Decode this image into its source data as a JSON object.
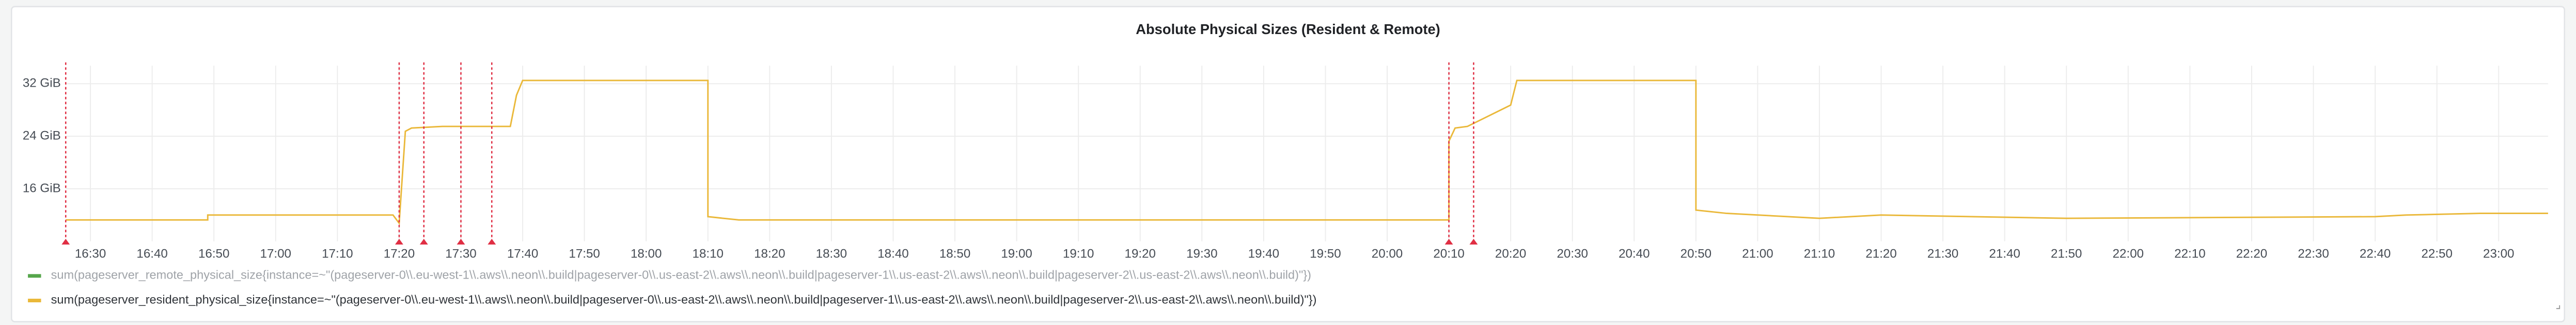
{
  "chart_data": {
    "type": "line",
    "title": "Absolute Physical Sizes (Resident & Remote)",
    "xlim": [
      "16:26",
      "23:08"
    ],
    "xticks": [
      "16:30",
      "16:40",
      "16:50",
      "17:00",
      "17:10",
      "17:20",
      "17:30",
      "17:40",
      "17:50",
      "18:00",
      "18:10",
      "18:20",
      "18:30",
      "18:40",
      "18:50",
      "19:00",
      "19:10",
      "19:20",
      "19:30",
      "19:40",
      "19:50",
      "20:00",
      "20:10",
      "20:20",
      "20:30",
      "20:40",
      "20:50",
      "21:00",
      "21:10",
      "21:20",
      "21:30",
      "21:40",
      "21:50",
      "22:00",
      "22:10",
      "22:20",
      "22:30",
      "22:40",
      "22:50",
      "23:00"
    ],
    "ylim": [
      8,
      34.75
    ],
    "yticks": [
      {
        "value": 16,
        "label": "16 GiB"
      },
      {
        "value": 24,
        "label": "24 GiB"
      },
      {
        "value": 32,
        "label": "32 GiB"
      }
    ],
    "grid": true,
    "annotations": [
      "16:26",
      "17:20",
      "17:24",
      "17:30",
      "17:35",
      "20:10",
      "20:14"
    ],
    "annotation_color": "#e02f44",
    "x": [
      "16:26",
      "16:49",
      "16:49",
      "17:19",
      "17:20",
      "17:21",
      "17:22",
      "17:27",
      "17:38",
      "17:39",
      "17:40",
      "18:10",
      "18:10",
      "18:15",
      "20:10",
      "20:10",
      "20:11",
      "20:13",
      "20:20",
      "20:21",
      "20:50",
      "20:50",
      "20:55",
      "21:10",
      "21:20",
      "21:50",
      "22:40",
      "22:45",
      "22:57",
      "23:08"
    ],
    "series": [
      {
        "name": "sum(pageserver_remote_physical_size{instance=~\"(pageserver-0\\\\.eu-west-1\\\\.aws\\\\.neon\\\\.build|pageserver-0\\\\.us-east-2\\\\.aws\\\\.neon\\\\.build|pageserver-1\\\\.us-east-2\\\\.aws\\\\.neon\\\\.build|pageserver-2\\\\.us-east-2\\\\.aws\\\\.neon\\\\.build)\"})",
        "color": "#56a64b",
        "values": [
          null,
          null,
          null,
          null,
          null,
          null,
          null,
          null,
          null,
          null,
          null,
          null,
          null,
          null,
          null,
          null,
          null,
          null,
          null,
          null,
          null,
          null,
          null,
          null,
          null,
          null,
          null,
          null,
          null,
          null
        ]
      },
      {
        "name": "sum(pageserver_resident_physical_size{instance=~\"(pageserver-0\\\\.eu-west-1\\\\.aws\\\\.neon\\\\.build|pageserver-0\\\\.us-east-2\\\\.aws\\\\.neon\\\\.build|pageserver-1\\\\.us-east-2\\\\.aws\\\\.neon\\\\.build|pageserver-2\\\\.us-east-2\\\\.aws\\\\.neon\\\\.build)\"})",
        "color": "#eab839",
        "values": [
          11.25,
          11.25,
          12,
          12,
          10.75,
          24.75,
          25.25,
          25.5,
          25.5,
          30.25,
          32.5,
          32.5,
          11.75,
          11.25,
          11.25,
          23.25,
          25.25,
          25.5,
          28.75,
          32.5,
          32.5,
          12.75,
          12.25,
          11.5,
          12,
          11.5,
          11.75,
          12,
          12.25,
          12.25
        ]
      }
    ]
  }
}
